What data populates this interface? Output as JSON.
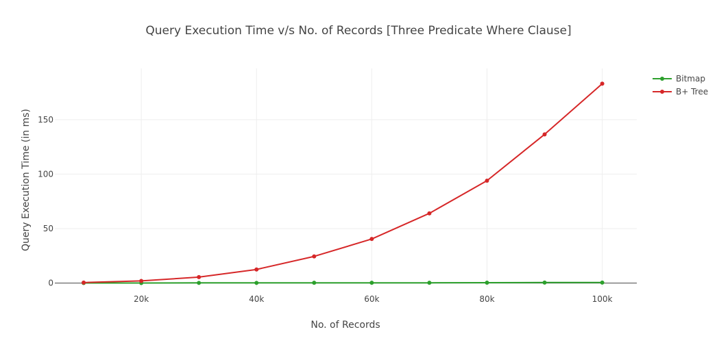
{
  "chart_data": {
    "type": "line",
    "title": "Query Execution Time v/s No. of Records [Three Predicate Where Clause]",
    "xlabel": "No. of Records",
    "ylabel": "Query Execution Time (in ms)",
    "x": [
      10000,
      20000,
      30000,
      40000,
      50000,
      60000,
      70000,
      80000,
      90000,
      100000
    ],
    "xlim": [
      5000,
      106000
    ],
    "ylim": [
      -4,
      197
    ],
    "x_ticks": [
      20000,
      40000,
      60000,
      80000,
      100000
    ],
    "x_tick_labels": [
      "20k",
      "40k",
      "60k",
      "80k",
      "100k"
    ],
    "y_ticks": [
      0,
      50,
      100,
      150
    ],
    "y_tick_labels": [
      "0",
      "50",
      "100",
      "150"
    ],
    "grid": true,
    "legend_position": "top-right",
    "series": [
      {
        "name": "Bitmap",
        "color": "#2ca02c",
        "values": [
          0.1,
          0.1,
          0.2,
          0.2,
          0.3,
          0.3,
          0.3,
          0.4,
          0.5,
          0.5
        ]
      },
      {
        "name": "B+ Tree",
        "color": "#d62728",
        "values": [
          0.5,
          2,
          5.5,
          12.5,
          24.5,
          40.5,
          64,
          94,
          136.5,
          183
        ]
      }
    ]
  }
}
